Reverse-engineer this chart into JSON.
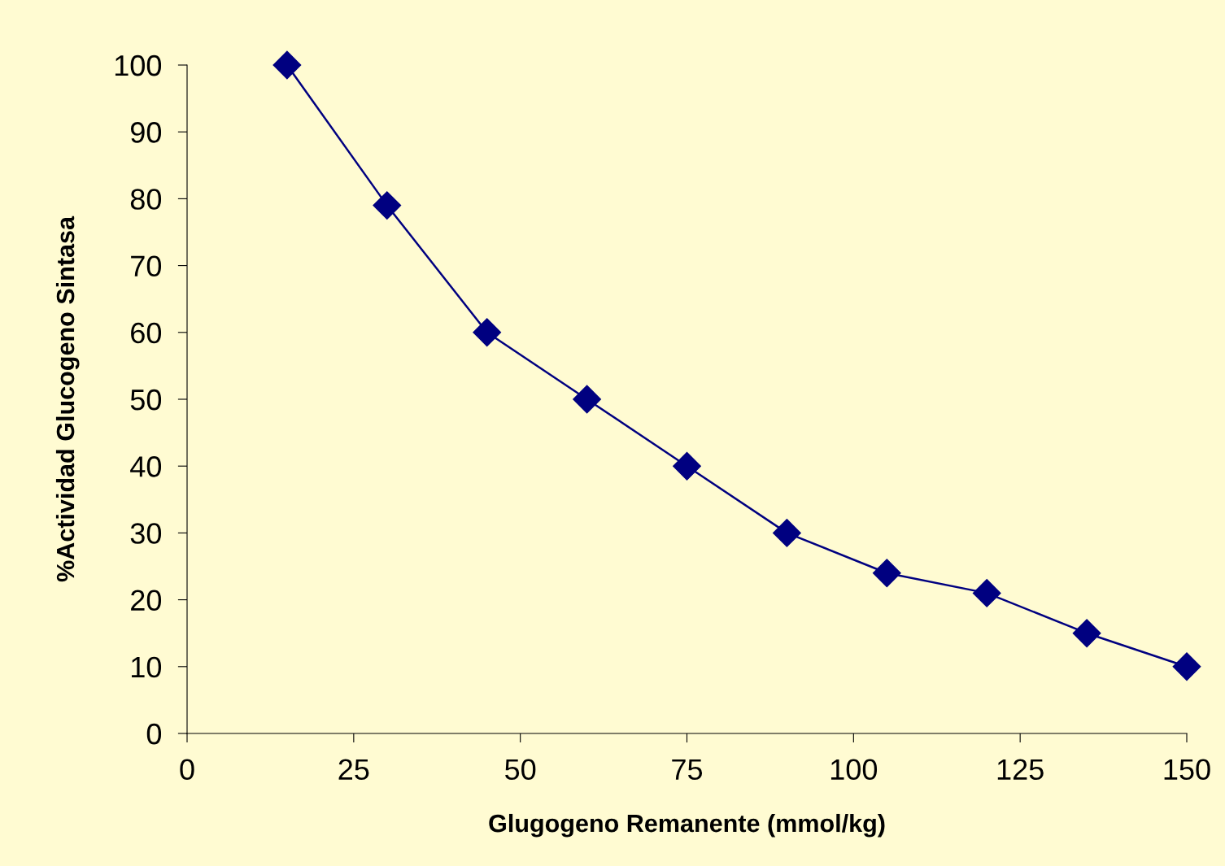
{
  "chart_data": {
    "type": "line",
    "xlabel": "Glugogeno Remanente (mmol/kg)",
    "ylabel": "%Actividad Glucogeno Sintasa",
    "x": [
      15,
      30,
      45,
      60,
      75,
      90,
      105,
      120,
      135,
      150
    ],
    "series": [
      {
        "color": "#000080",
        "values": [
          100,
          79,
          60,
          50,
          40,
          30,
          24,
          21,
          15,
          10
        ]
      }
    ],
    "xlim": [
      0,
      150
    ],
    "xticks": [
      0,
      25,
      50,
      75,
      100,
      125,
      150
    ],
    "ylim": [
      0,
      100
    ],
    "yticks": [
      0,
      10,
      20,
      30,
      40,
      50,
      60,
      70,
      80,
      90,
      100
    ],
    "marker": "diamond",
    "line_style": "solid",
    "grid": false,
    "legend": false
  }
}
